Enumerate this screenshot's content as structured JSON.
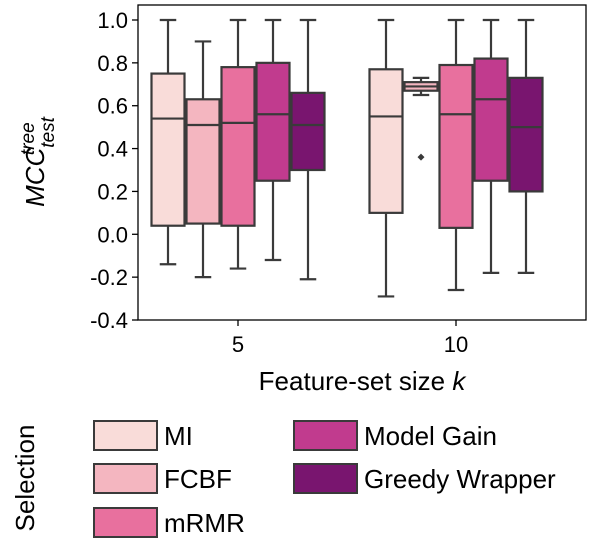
{
  "chart_data": {
    "type": "box",
    "title": "",
    "xlabel": "Feature-set size k",
    "xlabel_main": "Feature-set size ",
    "xlabel_var": "k",
    "ylabel": "MCC test tree",
    "ylabel_main": "MCC",
    "ylabel_sub": "test",
    "ylabel_sup": "tree",
    "ylim": [
      -0.4,
      1.0
    ],
    "yticks": [
      "-0.4",
      "-0.2",
      "0.0",
      "0.2",
      "0.4",
      "0.6",
      "0.8",
      "1.0"
    ],
    "categories": [
      "5",
      "10"
    ],
    "grid": false,
    "legend": {
      "title": "Selection",
      "placement": "below",
      "entries": [
        "MI",
        "FCBF",
        "mRMR",
        "Model Gain",
        "Greedy Wrapper"
      ]
    },
    "series": [
      {
        "name": "MI",
        "color": "#f9dcd9",
        "boxes": [
          {
            "whislo": -0.14,
            "q1": 0.04,
            "med": 0.54,
            "q3": 0.75,
            "whishi": 1.0,
            "fliers": []
          },
          {
            "whislo": -0.29,
            "q1": 0.1,
            "med": 0.55,
            "q3": 0.77,
            "whishi": 1.0,
            "fliers": []
          }
        ]
      },
      {
        "name": "FCBF",
        "color": "#f4b6c0",
        "boxes": [
          {
            "whislo": -0.2,
            "q1": 0.05,
            "med": 0.51,
            "q3": 0.63,
            "whishi": 0.9,
            "fliers": []
          },
          {
            "whislo": 0.65,
            "q1": 0.67,
            "med": 0.69,
            "q3": 0.71,
            "whishi": 0.73,
            "fliers": [
              0.36
            ]
          }
        ]
      },
      {
        "name": "mRMR",
        "color": "#e8709e",
        "boxes": [
          {
            "whislo": -0.16,
            "q1": 0.04,
            "med": 0.52,
            "q3": 0.78,
            "whishi": 1.0,
            "fliers": []
          },
          {
            "whislo": -0.26,
            "q1": 0.03,
            "med": 0.56,
            "q3": 0.79,
            "whishi": 1.0,
            "fliers": []
          }
        ]
      },
      {
        "name": "Model Gain",
        "color": "#c13b8e",
        "boxes": [
          {
            "whislo": -0.12,
            "q1": 0.25,
            "med": 0.56,
            "q3": 0.8,
            "whishi": 1.0,
            "fliers": []
          },
          {
            "whislo": -0.18,
            "q1": 0.25,
            "med": 0.63,
            "q3": 0.82,
            "whishi": 1.0,
            "fliers": []
          }
        ]
      },
      {
        "name": "Greedy Wrapper",
        "color": "#79156f",
        "boxes": [
          {
            "whislo": -0.21,
            "q1": 0.3,
            "med": 0.51,
            "q3": 0.66,
            "whishi": 1.0,
            "fliers": []
          },
          {
            "whislo": -0.18,
            "q1": 0.2,
            "med": 0.5,
            "q3": 0.73,
            "whishi": 1.0,
            "fliers": []
          }
        ]
      }
    ]
  }
}
